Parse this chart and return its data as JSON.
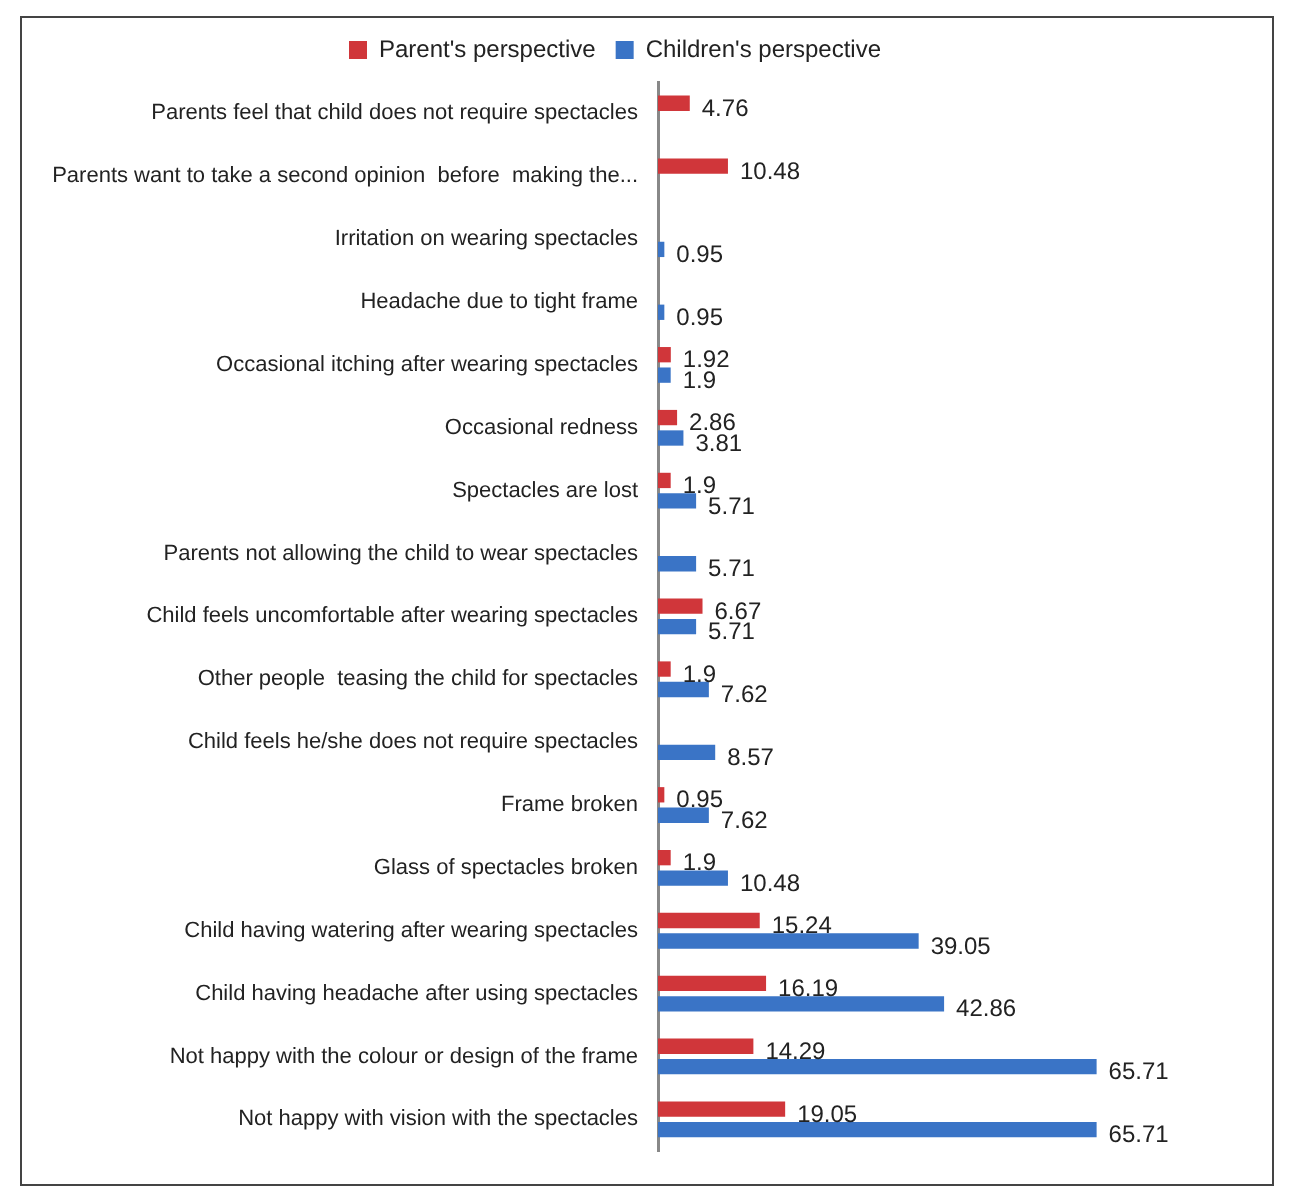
{
  "chart_data": {
    "type": "bar",
    "orientation": "horizontal",
    "data_labels": true,
    "legend": "top",
    "categories": [
      "Parents feel that child does not require spectacles",
      "Parents want to take a second opinion  before  making the...",
      "Irritation on wearing spectacles",
      "Headache due to tight frame",
      "Occasional itching after wearing spectacles",
      "Occasional redness",
      "Spectacles are lost",
      "Parents not allowing the child to wear spectacles",
      "Child feels uncomfortable after wearing spectacles",
      "Other people  teasing the child for spectacles",
      "Child feels he/she does not require spectacles",
      "Frame broken",
      "Glass of spectacles broken",
      "Child having watering after wearing spectacles",
      "Child having headache after using spectacles",
      "Not happy with the colour or design of the frame",
      "Not happy with vision with the spectacles"
    ],
    "series": [
      {
        "name": "Parent's perspective",
        "color": "#d0363a",
        "values": [
          4.76,
          10.48,
          null,
          null,
          1.92,
          2.86,
          1.9,
          null,
          6.67,
          1.9,
          null,
          0.95,
          1.9,
          15.24,
          16.19,
          14.29,
          19.05
        ]
      },
      {
        "name": "Children's perspective",
        "color": "#3a74c6",
        "values": [
          null,
          null,
          0.95,
          0.95,
          1.9,
          3.81,
          5.71,
          5.71,
          5.71,
          7.62,
          8.57,
          7.62,
          10.48,
          39.05,
          42.86,
          65.71,
          65.71
        ]
      }
    ]
  }
}
